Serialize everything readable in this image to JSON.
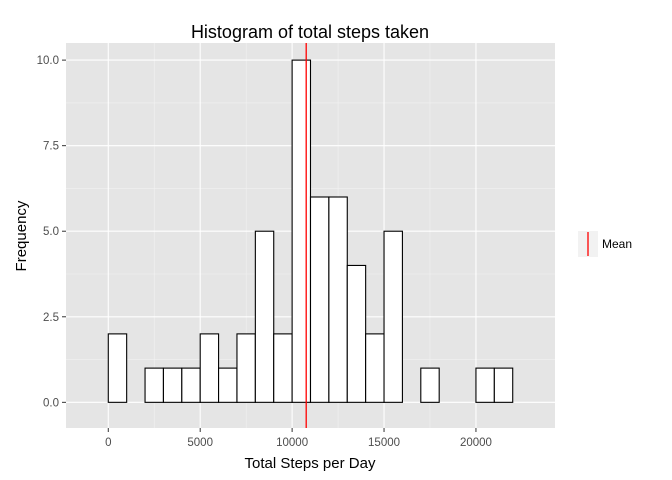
{
  "chart_data": {
    "type": "bar",
    "title": "Histogram of total steps taken",
    "xlabel": "Total Steps per Day",
    "ylabel": "Frequency",
    "xlim": [
      -2300,
      24300
    ],
    "ylim": [
      -0.75,
      10.5
    ],
    "x_ticks": [
      0,
      5000,
      10000,
      15000,
      20000
    ],
    "x_tick_labels": [
      "0",
      "5000",
      "10000",
      "15000",
      "20000"
    ],
    "y_ticks": [
      0,
      2.5,
      5,
      7.5,
      10
    ],
    "y_tick_labels": [
      "0.0",
      "2.5",
      "5.0",
      "7.5",
      "10.0"
    ],
    "bin_width": 1000,
    "bins": [
      {
        "start": -1000,
        "end": 0,
        "count": 0
      },
      {
        "start": 0,
        "end": 1000,
        "count": 2
      },
      {
        "start": 1000,
        "end": 2000,
        "count": 0
      },
      {
        "start": 2000,
        "end": 3000,
        "count": 1
      },
      {
        "start": 3000,
        "end": 4000,
        "count": 1
      },
      {
        "start": 4000,
        "end": 5000,
        "count": 1
      },
      {
        "start": 5000,
        "end": 6000,
        "count": 2
      },
      {
        "start": 6000,
        "end": 7000,
        "count": 1
      },
      {
        "start": 7000,
        "end": 8000,
        "count": 2
      },
      {
        "start": 8000,
        "end": 9000,
        "count": 5
      },
      {
        "start": 9000,
        "end": 10000,
        "count": 2
      },
      {
        "start": 10000,
        "end": 11000,
        "count": 10
      },
      {
        "start": 11000,
        "end": 12000,
        "count": 6
      },
      {
        "start": 12000,
        "end": 13000,
        "count": 6
      },
      {
        "start": 13000,
        "end": 14000,
        "count": 4
      },
      {
        "start": 14000,
        "end": 15000,
        "count": 2
      },
      {
        "start": 15000,
        "end": 16000,
        "count": 5
      },
      {
        "start": 16000,
        "end": 17000,
        "count": 0
      },
      {
        "start": 17000,
        "end": 18000,
        "count": 1
      },
      {
        "start": 18000,
        "end": 19000,
        "count": 0
      },
      {
        "start": 19000,
        "end": 20000,
        "count": 0
      },
      {
        "start": 20000,
        "end": 21000,
        "count": 1
      },
      {
        "start": 21000,
        "end": 22000,
        "count": 1
      },
      {
        "start": 22000,
        "end": 23000,
        "count": 0
      }
    ],
    "mean_line": {
      "value": 10766,
      "color": "#ff0000",
      "legend_label": "Mean"
    },
    "grid": true,
    "legend_position": "right",
    "colors": {
      "panel_background": "#e5e5e5",
      "grid_major": "#ffffff",
      "grid_minor": "#f2f2f2",
      "bar_fill": "#ffffff",
      "bar_outline": "#000000"
    }
  }
}
